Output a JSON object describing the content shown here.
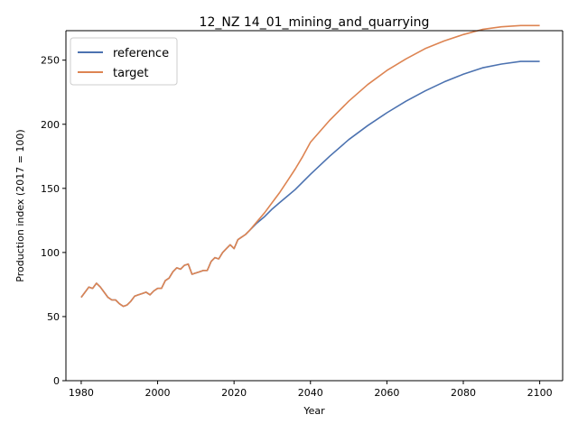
{
  "chart_data": {
    "type": "line",
    "title": "12_NZ 14_01_mining_and_quarrying",
    "xlabel": "Year",
    "ylabel": "Production index (2017 = 100)",
    "xlim": [
      1976,
      2106
    ],
    "ylim": [
      0,
      273
    ],
    "xticks": [
      1980,
      2000,
      2020,
      2040,
      2060,
      2080,
      2100
    ],
    "yticks": [
      0,
      50,
      100,
      150,
      200,
      250
    ],
    "legend_position": "top-left",
    "grid": false,
    "series": [
      {
        "name": "reference",
        "color": "#4c72b0",
        "points": [
          [
            1980,
            65
          ],
          [
            1981,
            69
          ],
          [
            1982,
            73
          ],
          [
            1983,
            72
          ],
          [
            1984,
            76
          ],
          [
            1985,
            73
          ],
          [
            1986,
            69
          ],
          [
            1987,
            65
          ],
          [
            1988,
            63
          ],
          [
            1989,
            63
          ],
          [
            1990,
            60
          ],
          [
            1991,
            58
          ],
          [
            1992,
            59
          ],
          [
            1993,
            62
          ],
          [
            1994,
            66
          ],
          [
            1995,
            67
          ],
          [
            1996,
            68
          ],
          [
            1997,
            69
          ],
          [
            1998,
            67
          ],
          [
            1999,
            70
          ],
          [
            2000,
            72
          ],
          [
            2001,
            72
          ],
          [
            2002,
            78
          ],
          [
            2003,
            80
          ],
          [
            2004,
            85
          ],
          [
            2005,
            88
          ],
          [
            2006,
            87
          ],
          [
            2007,
            90
          ],
          [
            2008,
            91
          ],
          [
            2009,
            83
          ],
          [
            2010,
            84
          ],
          [
            2011,
            85
          ],
          [
            2012,
            86
          ],
          [
            2013,
            86
          ],
          [
            2014,
            93
          ],
          [
            2015,
            96
          ],
          [
            2016,
            95
          ],
          [
            2017,
            100
          ],
          [
            2018,
            103
          ],
          [
            2019,
            106
          ],
          [
            2020,
            103
          ],
          [
            2021,
            110
          ],
          [
            2022,
            112
          ],
          [
            2023,
            114
          ],
          [
            2024,
            117
          ],
          [
            2026,
            123
          ],
          [
            2028,
            128
          ],
          [
            2030,
            134
          ],
          [
            2032,
            139
          ],
          [
            2034,
            144
          ],
          [
            2036,
            149
          ],
          [
            2038,
            155
          ],
          [
            2040,
            161
          ],
          [
            2045,
            175
          ],
          [
            2050,
            188
          ],
          [
            2055,
            199
          ],
          [
            2060,
            209
          ],
          [
            2065,
            218
          ],
          [
            2070,
            226
          ],
          [
            2075,
            233
          ],
          [
            2080,
            239
          ],
          [
            2085,
            244
          ],
          [
            2090,
            247
          ],
          [
            2095,
            249
          ],
          [
            2100,
            249
          ]
        ]
      },
      {
        "name": "target",
        "color": "#dd8452",
        "points": [
          [
            1980,
            65
          ],
          [
            1981,
            69
          ],
          [
            1982,
            73
          ],
          [
            1983,
            72
          ],
          [
            1984,
            76
          ],
          [
            1985,
            73
          ],
          [
            1986,
            69
          ],
          [
            1987,
            65
          ],
          [
            1988,
            63
          ],
          [
            1989,
            63
          ],
          [
            1990,
            60
          ],
          [
            1991,
            58
          ],
          [
            1992,
            59
          ],
          [
            1993,
            62
          ],
          [
            1994,
            66
          ],
          [
            1995,
            67
          ],
          [
            1996,
            68
          ],
          [
            1997,
            69
          ],
          [
            1998,
            67
          ],
          [
            1999,
            70
          ],
          [
            2000,
            72
          ],
          [
            2001,
            72
          ],
          [
            2002,
            78
          ],
          [
            2003,
            80
          ],
          [
            2004,
            85
          ],
          [
            2005,
            88
          ],
          [
            2006,
            87
          ],
          [
            2007,
            90
          ],
          [
            2008,
            91
          ],
          [
            2009,
            83
          ],
          [
            2010,
            84
          ],
          [
            2011,
            85
          ],
          [
            2012,
            86
          ],
          [
            2013,
            86
          ],
          [
            2014,
            93
          ],
          [
            2015,
            96
          ],
          [
            2016,
            95
          ],
          [
            2017,
            100
          ],
          [
            2018,
            103
          ],
          [
            2019,
            106
          ],
          [
            2020,
            103
          ],
          [
            2021,
            110
          ],
          [
            2022,
            112
          ],
          [
            2023,
            114
          ],
          [
            2024,
            117
          ],
          [
            2026,
            124
          ],
          [
            2028,
            131
          ],
          [
            2030,
            139
          ],
          [
            2032,
            147
          ],
          [
            2034,
            156
          ],
          [
            2036,
            165
          ],
          [
            2038,
            175
          ],
          [
            2040,
            186
          ],
          [
            2045,
            203
          ],
          [
            2050,
            218
          ],
          [
            2055,
            231
          ],
          [
            2060,
            242
          ],
          [
            2065,
            251
          ],
          [
            2070,
            259
          ],
          [
            2075,
            265
          ],
          [
            2080,
            270
          ],
          [
            2085,
            274
          ],
          [
            2090,
            276
          ],
          [
            2095,
            277
          ],
          [
            2100,
            277
          ]
        ]
      }
    ]
  }
}
